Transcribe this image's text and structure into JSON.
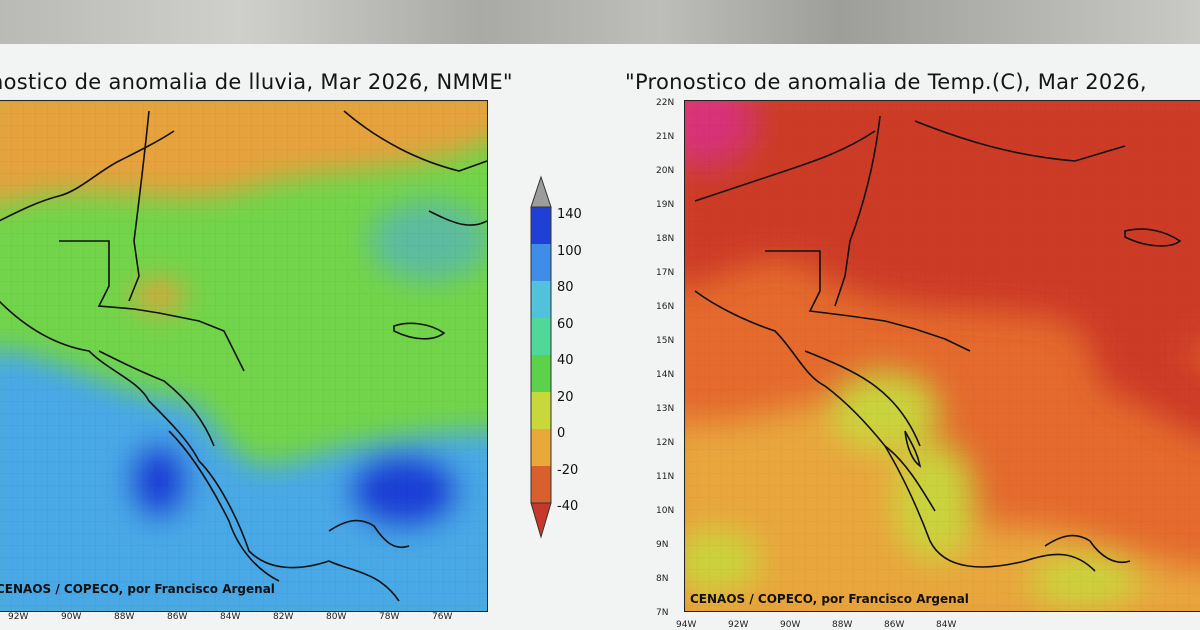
{
  "left_map": {
    "title": "nostico de anomalia de lluvia, Mar 2026, NMME\"",
    "credit": "CENAOS / COPECO, por Francisco Argenal",
    "lon_labels": [
      "92W",
      "90W",
      "88W",
      "86W",
      "84W",
      "82W",
      "80W",
      "78W",
      "76W"
    ]
  },
  "right_map": {
    "title": "\"Pronostico de anomalia de Temp.(C), Mar 2026,",
    "credit": "CENAOS / COPECO, por Francisco Argenal",
    "lat_labels": [
      "22N",
      "21N",
      "20N",
      "19N",
      "18N",
      "17N",
      "16N",
      "15N",
      "14N",
      "13N",
      "12N",
      "11N",
      "10N",
      "9N",
      "8N",
      "7N"
    ],
    "lon_labels": [
      "94W",
      "92W",
      "90W",
      "88W",
      "86W",
      "84W"
    ]
  },
  "colorbar": {
    "labels": [
      "140",
      "100",
      "80",
      "60",
      "40",
      "20",
      "0",
      "-20",
      "-40"
    ],
    "colors": [
      "#9c9c9c",
      "#1f3fd6",
      "#3f8de8",
      "#52c2dc",
      "#4fd89a",
      "#5bd24a",
      "#c8d83a",
      "#e8a83a",
      "#d9602e",
      "#c8382a"
    ]
  },
  "colors": {
    "precip_base": "#72d44a",
    "precip_wet": "#4aa8e6",
    "precip_max": "#1f3fd6",
    "precip_dry": "#e6a23c",
    "temp_base": "#e46a2e",
    "temp_hot": "#cc3a26",
    "temp_mild": "#e8a63c",
    "temp_cool": "#c9d43c",
    "temp_max": "#d8327a"
  }
}
